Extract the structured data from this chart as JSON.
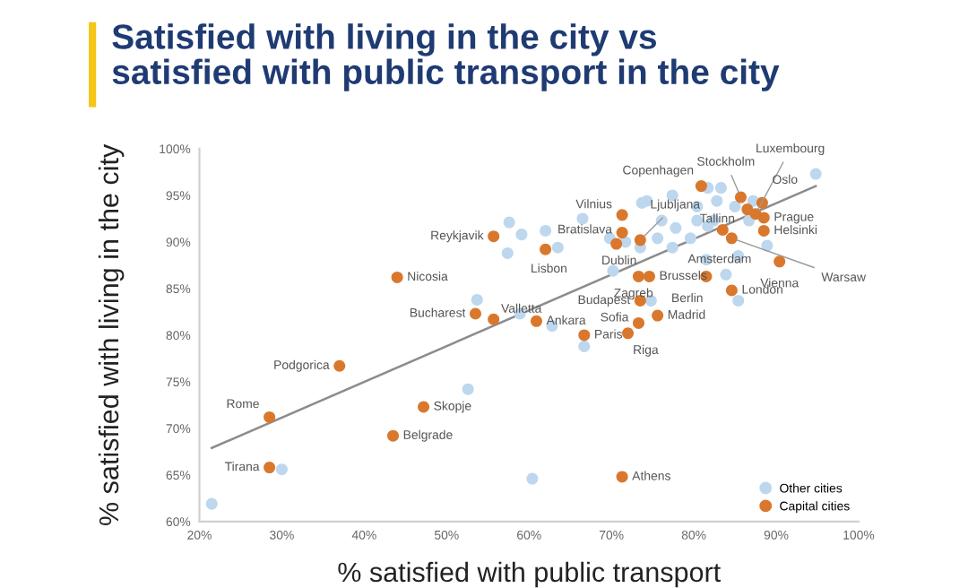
{
  "chart_data": {
    "type": "scatter",
    "title": "Satisfied with living in the city vs\nsatisfied with public transport in the city",
    "xlabel": "% satisfied with public transport",
    "ylabel": "% satisfied with living in the city",
    "xlim": [
      20,
      100
    ],
    "ylim": [
      60,
      100
    ],
    "xticks": [
      {
        "value": 20,
        "label": "20%"
      },
      {
        "value": 30,
        "label": "30%"
      },
      {
        "value": 40,
        "label": "40%"
      },
      {
        "value": 50,
        "label": "50%"
      },
      {
        "value": 60,
        "label": "60%"
      },
      {
        "value": 70,
        "label": "70%"
      },
      {
        "value": 80,
        "label": "80%"
      },
      {
        "value": 90,
        "label": "90%"
      },
      {
        "value": 100,
        "label": "100%"
      }
    ],
    "yticks": [
      {
        "value": 60,
        "label": "60%"
      },
      {
        "value": 65,
        "label": "65%"
      },
      {
        "value": 70,
        "label": "70%"
      },
      {
        "value": 75,
        "label": "75%"
      },
      {
        "value": 80,
        "label": "80%"
      },
      {
        "value": 85,
        "label": "85%"
      },
      {
        "value": 90,
        "label": "90%"
      },
      {
        "value": 95,
        "label": "95%"
      },
      {
        "value": 100,
        "label": "100%"
      }
    ],
    "grid": false,
    "legend": "bottom right",
    "marker": "circle",
    "series": [
      {
        "name": "Other cities",
        "color": "#bdd7ee",
        "x": [
          21.5,
          30,
          57.6,
          59.1,
          57.4,
          62,
          63.5,
          53.7,
          58.9,
          62.8,
          52.6,
          60.4,
          66.7,
          66.5,
          69.8,
          70.2,
          73.7,
          74.3,
          71.7,
          74.8,
          75.6,
          77.8,
          77.4,
          80.4,
          82.8,
          83.3,
          81.7,
          85,
          87.2,
          94.8,
          76.1,
          80.4,
          82.4,
          79.6,
          81.7,
          86.7,
          73.5,
          77.4,
          85.4,
          81.5,
          88.9,
          83.9,
          85.4
        ],
        "values": [
          61.9,
          65.6,
          92.1,
          90.8,
          88.8,
          91.2,
          89.4,
          83.8,
          82.3,
          81,
          74.2,
          64.6,
          78.8,
          92.5,
          90.4,
          86.9,
          94.2,
          94.4,
          90,
          83.7,
          90.4,
          91.5,
          95,
          93.8,
          94.4,
          95.8,
          95.8,
          93.8,
          94.4,
          97.3,
          92.3,
          92.3,
          92.3,
          90.4,
          91.7,
          92.3,
          89.4,
          89.4,
          88.5,
          88.1,
          89.6,
          86.5,
          83.7
        ]
      },
      {
        "type": "line",
        "color": "#8c8c8c",
        "x": [
          21.5,
          94.8
        ],
        "values": [
          67.9,
          96
        ],
        "marker": "none"
      },
      {
        "name": "Capital cities",
        "color": "#d9782d",
        "x": [
          28.5,
          28.5,
          37,
          43.5,
          44,
          47.2,
          55.7,
          53.5,
          55.7,
          60.9,
          62,
          66.7,
          71.3,
          71.3,
          70.6,
          71.3,
          72,
          73.3,
          73.5,
          73.3,
          74.6,
          75.6,
          73.5,
          80.9,
          85.7,
          87.5,
          88.3,
          86.5,
          88.5,
          88.5,
          83.5,
          84.6,
          90.4,
          81.5,
          84.6
        ],
        "values": [
          65.8,
          71.2,
          76.7,
          69.2,
          86.2,
          72.3,
          90.6,
          82.3,
          81.7,
          81.5,
          89.2,
          80,
          92.9,
          91,
          89.8,
          64.8,
          80.2,
          81.3,
          83.7,
          86.3,
          86.3,
          82.1,
          90.2,
          96,
          94.8,
          93,
          94.2,
          93.5,
          92.6,
          91.2,
          91.3,
          90.4,
          87.9,
          86.3,
          84.8
        ]
      }
    ],
    "annotations": [
      {
        "text": "Tirana",
        "x": 28.5,
        "y": 65.8
      },
      {
        "text": "Rome",
        "x": 28.5,
        "y": 71.2
      },
      {
        "text": "Podgorica",
        "x": 37,
        "y": 76.7
      },
      {
        "text": "Belgrade",
        "x": 43.5,
        "y": 69.2
      },
      {
        "text": "Nicosia",
        "x": 44,
        "y": 86.2
      },
      {
        "text": "Skopje",
        "x": 47.2,
        "y": 72.3
      },
      {
        "text": "Reykjavik",
        "x": 55.7,
        "y": 90.6
      },
      {
        "text": "Bucharest",
        "x": 53.5,
        "y": 82.3
      },
      {
        "text": "Valletta",
        "x": 55.7,
        "y": 81.7
      },
      {
        "text": "Ankara",
        "x": 60.9,
        "y": 81.5
      },
      {
        "text": "Lisbon",
        "x": 62,
        "y": 89.2
      },
      {
        "text": "Paris",
        "x": 66.7,
        "y": 80
      },
      {
        "text": "Vilnius",
        "x": 71.3,
        "y": 92.9
      },
      {
        "text": "Bratislava",
        "x": 71.3,
        "y": 91
      },
      {
        "text": "Dublin",
        "x": 70.6,
        "y": 89.8
      },
      {
        "text": "Athens",
        "x": 71.3,
        "y": 64.8
      },
      {
        "text": "Riga",
        "x": 72,
        "y": 80.2
      },
      {
        "text": "Sofia",
        "x": 73.3,
        "y": 81.3
      },
      {
        "text": "Budapest",
        "x": 73.5,
        "y": 83.7
      },
      {
        "text": "Zagreb",
        "x": 73.3,
        "y": 86.3
      },
      {
        "text": "Brussels",
        "x": 74.6,
        "y": 86.3
      },
      {
        "text": "Madrid",
        "x": 75.6,
        "y": 82.1
      },
      {
        "text": "Ljubljana",
        "x": 73.5,
        "y": 90.2
      },
      {
        "text": "Copenhagen",
        "x": 80.9,
        "y": 96
      },
      {
        "text": "Stockholm",
        "x": 85.7,
        "y": 94.8
      },
      {
        "text": "Luxembourg",
        "x": 87.5,
        "y": 93
      },
      {
        "text": "Oslo",
        "x": 88.3,
        "y": 94.2
      },
      {
        "text": "Tallinn",
        "x": 86.5,
        "y": 93.5
      },
      {
        "text": "Prague",
        "x": 88.5,
        "y": 92.6
      },
      {
        "text": "Helsinki",
        "x": 88.5,
        "y": 91.2
      },
      {
        "text": "Amsterdam",
        "x": 83.5,
        "y": 91.3
      },
      {
        "text": "Warsaw",
        "x": 84.6,
        "y": 90.4
      },
      {
        "text": "Vienna",
        "x": 90.4,
        "y": 87.9
      },
      {
        "text": "Berlin",
        "x": 81.5,
        "y": 86.3
      },
      {
        "text": "London",
        "x": 84.6,
        "y": 84.8
      }
    ]
  }
}
